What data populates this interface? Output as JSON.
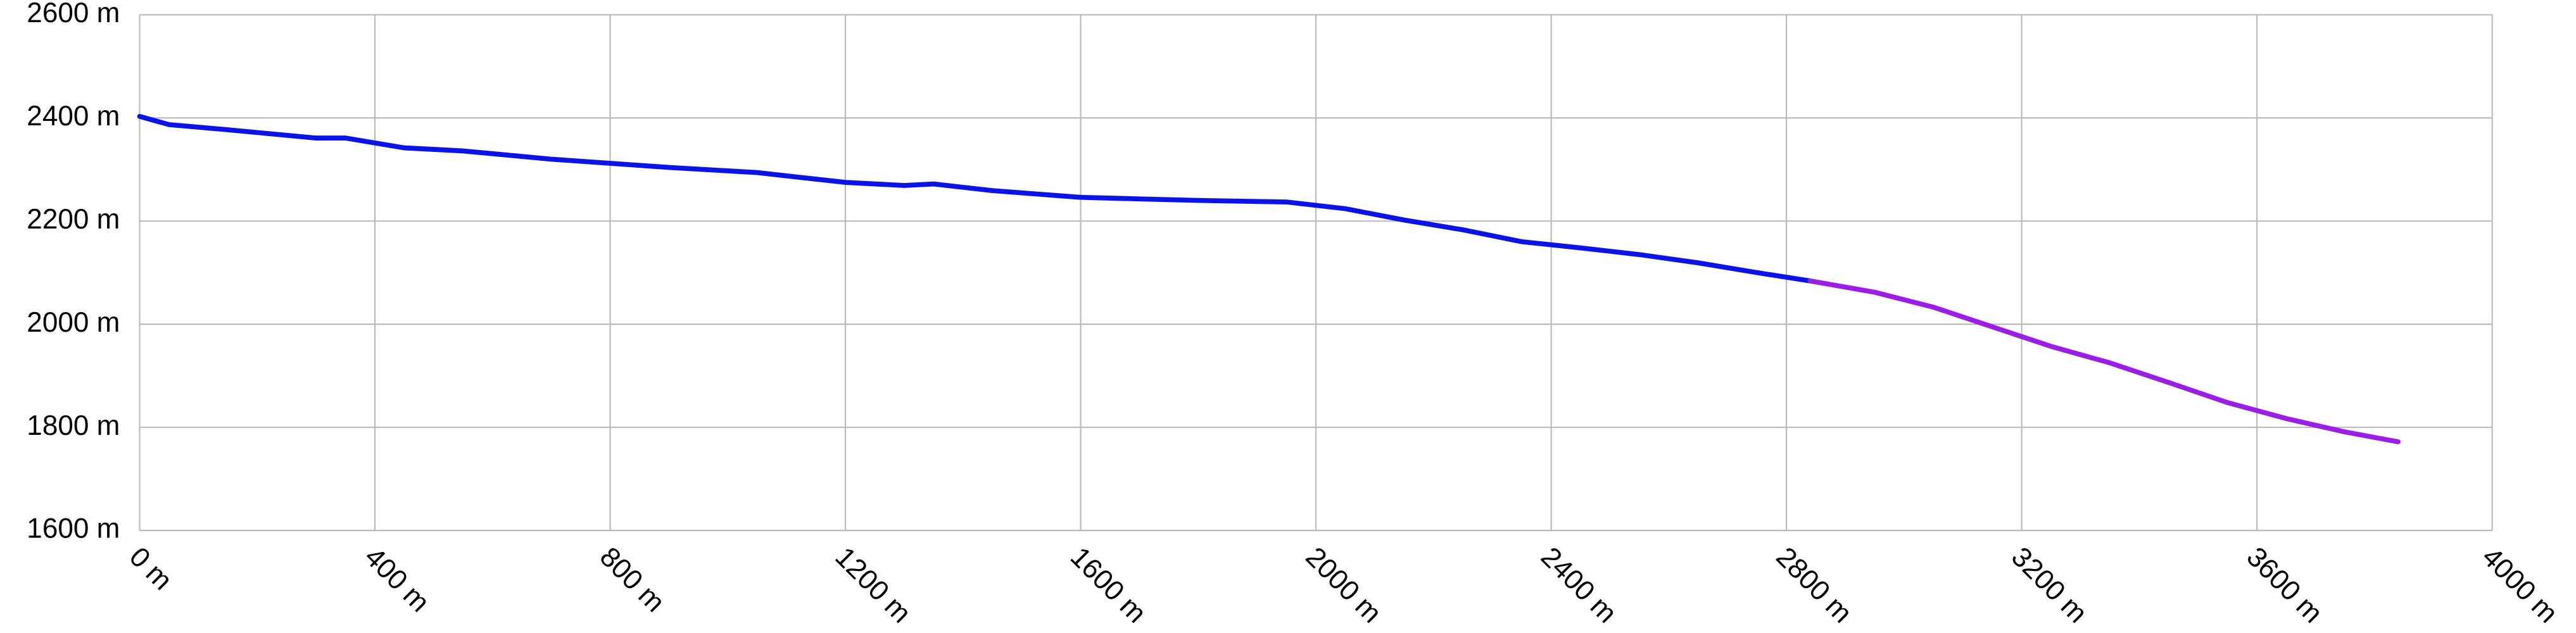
{
  "chart_data": {
    "type": "line",
    "series": [
      {
        "color": "#0a14e6",
        "x": [
          0,
          50,
          150,
          300,
          350,
          450,
          550,
          700,
          900,
          1050,
          1200,
          1300,
          1350,
          1450,
          1600,
          1700,
          1800,
          1950,
          2050,
          2150,
          2250,
          2350,
          2450,
          2550,
          2650,
          2750,
          2840
        ],
        "values": [
          2403,
          2387,
          2377,
          2361,
          2361,
          2342,
          2336,
          2320,
          2304,
          2294,
          2275,
          2269,
          2272,
          2259,
          2246,
          2243,
          2240,
          2237,
          2224,
          2202,
          2183,
          2160,
          2148,
          2135,
          2119,
          2100,
          2084
        ]
      },
      {
        "color": "#9a1ee6",
        "x": [
          2840,
          2950,
          3050,
          3150,
          3250,
          3350,
          3450,
          3550,
          3650,
          3750,
          3840
        ],
        "values": [
          2084,
          2062,
          2033,
          1995,
          1957,
          1925,
          1887,
          1848,
          1817,
          1791,
          1772
        ]
      }
    ],
    "xlim": [
      0,
      4000
    ],
    "xticks": [
      {
        "value": 0,
        "label": "0 m"
      },
      {
        "value": 400,
        "label": "400 m"
      },
      {
        "value": 800,
        "label": "800 m"
      },
      {
        "value": 1200,
        "label": "1200 m"
      },
      {
        "value": 1600,
        "label": "1600 m"
      },
      {
        "value": 2000,
        "label": "2000 m"
      },
      {
        "value": 2400,
        "label": "2400 m"
      },
      {
        "value": 2800,
        "label": "2800 m"
      },
      {
        "value": 3200,
        "label": "3200 m"
      },
      {
        "value": 3600,
        "label": "3600 m"
      },
      {
        "value": 4000,
        "label": "4000 m"
      }
    ],
    "ylim": [
      1600,
      2600
    ],
    "yticks": [
      {
        "value": 1600,
        "label": "1600 m"
      },
      {
        "value": 1800,
        "label": "1800 m"
      },
      {
        "value": 2000,
        "label": "2000 m"
      },
      {
        "value": 2200,
        "label": "2200 m"
      },
      {
        "value": 2400,
        "label": "2400 m"
      },
      {
        "value": 2600,
        "label": "2600 m"
      }
    ],
    "grid": true
  }
}
